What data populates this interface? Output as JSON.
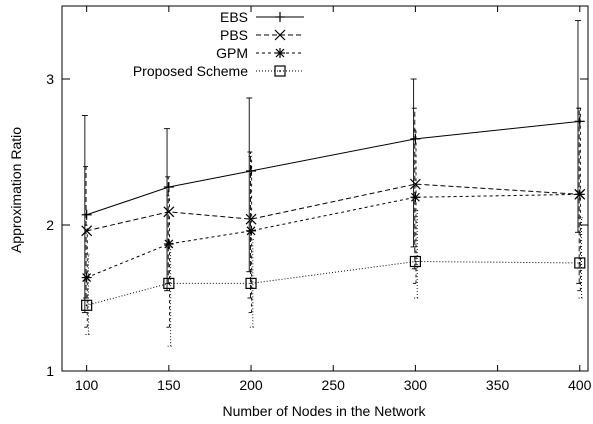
{
  "chart_data": {
    "type": "line",
    "title": "",
    "xlabel": "Number of Nodes in the Network",
    "ylabel": "Approximation Ratio",
    "xlim": [
      85,
      405
    ],
    "ylim": [
      1,
      3.5
    ],
    "x_ticks": [
      100,
      150,
      200,
      250,
      300,
      350,
      400
    ],
    "y_ticks": [
      1,
      2,
      3
    ],
    "grid": false,
    "legend_position": "top-center",
    "x": [
      100,
      150,
      200,
      300,
      400
    ],
    "series": [
      {
        "name": "EBS",
        "marker": "plus",
        "line_style": "solid",
        "values": [
          2.07,
          2.26,
          2.37,
          2.59,
          2.71
        ],
        "error_low": [
          1.4,
          1.55,
          1.68,
          1.85,
          1.95
        ],
        "error_high": [
          2.75,
          2.66,
          2.87,
          3.0,
          3.4
        ]
      },
      {
        "name": "PBS",
        "marker": "cross",
        "line_style": "dashed",
        "values": [
          1.96,
          2.09,
          2.04,
          2.28,
          2.21
        ],
        "error_low": [
          1.5,
          1.6,
          1.5,
          1.7,
          1.6
        ],
        "error_high": [
          2.4,
          2.33,
          2.5,
          2.8,
          2.8
        ]
      },
      {
        "name": "GPM",
        "marker": "star",
        "line_style": "short-dashed",
        "values": [
          1.64,
          1.87,
          1.96,
          2.19,
          2.21
        ],
        "error_low": [
          1.3,
          1.3,
          1.4,
          1.6,
          1.55
        ],
        "error_high": [
          2.0,
          2.2,
          2.47,
          2.65,
          2.8
        ]
      },
      {
        "name": "Proposed Scheme",
        "marker": "square",
        "line_style": "dotted",
        "values": [
          1.45,
          1.6,
          1.6,
          1.75,
          1.74
        ],
        "error_low": [
          1.25,
          1.17,
          1.3,
          1.5,
          1.5
        ],
        "error_high": [
          1.8,
          1.85,
          1.9,
          2.1,
          2.05
        ]
      }
    ]
  }
}
